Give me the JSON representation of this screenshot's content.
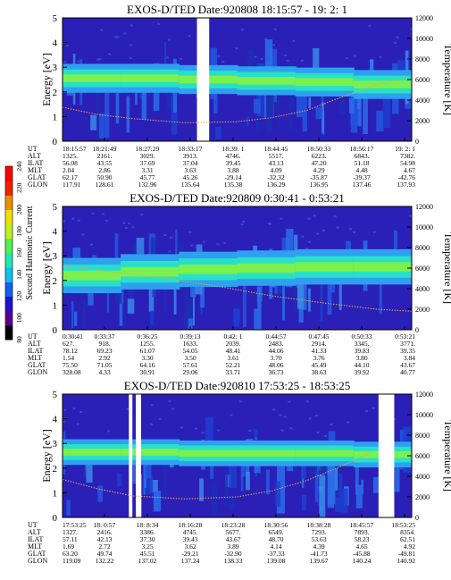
{
  "chart_data": {
    "type": "heatmap",
    "colorbar": {
      "label": "Second Harmonic Current",
      "ticks": [
        "80",
        "100",
        "120",
        "140",
        "160",
        "180",
        "200",
        "220",
        "240"
      ],
      "range": [
        80,
        240
      ]
    },
    "y_left": {
      "label": "Energy [eV]",
      "range": [
        0,
        5
      ],
      "ticks": [
        "0",
        "1",
        "2",
        "3",
        "4",
        "5"
      ]
    },
    "y_right": {
      "label": "Temperature [K]",
      "range": [
        0,
        12000
      ],
      "ticks": [
        "0",
        "2000",
        "4000",
        "6000",
        "8000",
        "10000",
        "12000"
      ]
    },
    "row_labels": [
      "UT",
      "ALT",
      "ILAT",
      "MLT",
      "GLAT",
      "GLON"
    ],
    "panels": [
      {
        "title_name": "EXOS-D/TED",
        "title_date": "Date:920808",
        "title_range": "18:15:57 - 19: 2: 1",
        "band": {
          "center_ev": [
            2.55,
            2.55,
            2.5,
            2.45,
            2.4,
            2.3
          ],
          "width_ev": 0.45
        },
        "gaps": [
          [
            0.385,
            0.42
          ]
        ],
        "temperature_k": [
          {
            "t": 0.0,
            "k": 3300
          },
          {
            "t": 0.1,
            "k": 2600
          },
          {
            "t": 0.2,
            "k": 2200
          },
          {
            "t": 0.35,
            "k": 1800
          },
          {
            "t": 0.5,
            "k": 1900
          },
          {
            "t": 0.6,
            "k": 2300
          },
          {
            "t": 0.7,
            "k": 3000
          },
          {
            "t": 0.8,
            "k": 4300
          },
          {
            "t": 0.9,
            "k": 5500
          },
          {
            "t": 1.0,
            "k": 6300
          }
        ],
        "table": [
          [
            "18:15:57",
            "18:21:49",
            "18:27:29",
            "18:33:17",
            "18:39: 1",
            "18:44:45",
            "18:50:33",
            "18:56:17",
            "19: 2: 1"
          ],
          [
            "1325.",
            "2161.",
            "3029.",
            "3913.",
            "4746.",
            "5517.",
            "6223.",
            "6843.",
            "7382."
          ],
          [
            "56.08",
            "43.55",
            "37.69",
            "37.04",
            "39.45",
            "43.13",
            "47.20",
            "51.18",
            "54.98"
          ],
          [
            "2.04",
            "2.86",
            "3.31",
            "3.63",
            "3.88",
            "4.09",
            "4.29",
            "4.48",
            "4.67"
          ],
          [
            "62.17",
            "50.90",
            "45.77",
            "45.26",
            "-29.14",
            "-32.32",
            "-35.87",
            "-39.37",
            "-42.76"
          ],
          [
            "117.91",
            "128.61",
            "132.96",
            "135.64",
            "135.38",
            "136.29",
            "136.95",
            "137.46",
            "137.93"
          ]
        ]
      },
      {
        "title_name": "EXOS-D/TED",
        "title_date": "Date:920809",
        "title_range": "0:30:41 - 0:53:21",
        "band": {
          "center_ev": [
            2.2,
            2.35,
            2.45,
            2.5,
            2.55,
            2.55
          ],
          "width_ev": 0.55
        },
        "gaps": [],
        "temperature_k": [
          {
            "t": 0.0,
            "k": 6200
          },
          {
            "t": 0.15,
            "k": 5600
          },
          {
            "t": 0.3,
            "k": 5000
          },
          {
            "t": 0.45,
            "k": 4200
          },
          {
            "t": 0.6,
            "k": 3300
          },
          {
            "t": 0.75,
            "k": 2600
          },
          {
            "t": 0.9,
            "k": 2000
          },
          {
            "t": 1.0,
            "k": 1800
          }
        ],
        "table": [
          [
            "0:30:41",
            "0:33:37",
            "0:36:25",
            "0:39:13",
            "0:42: 1",
            "0:44:57",
            "0:47:45",
            "0:50:33",
            "0:53:21"
          ],
          [
            "627.",
            "918.",
            "1255.",
            "1633.",
            "2039.",
            "2483.",
            "2914.",
            "3345.",
            "3771."
          ],
          [
            "78.12",
            "69.23",
            "61.07",
            "54.05",
            "48.41",
            "44.06",
            "41.33",
            "39.83",
            "39.35"
          ],
          [
            "1.54",
            "2.92",
            "3.30",
            "3.50",
            "3.61",
            "3.70",
            "3.76",
            "3.80",
            "3.84"
          ],
          [
            "75.50",
            "71.05",
            "64.16",
            "57.61",
            "52.21",
            "48.06",
            "45.49",
            "44.10",
            "43.67"
          ],
          [
            "328.08",
            "4.33",
            "30.91",
            "29.06",
            "33.71",
            "36.73",
            "38.63",
            "39.92",
            "40.77"
          ]
        ]
      },
      {
        "title_name": "EXOS-D/TED",
        "title_date": "Date:920810",
        "title_range": "17:53:25 - 18:53:25",
        "band": {
          "center_ev": [
            2.65,
            2.65,
            2.6,
            2.6,
            2.6,
            2.55
          ],
          "width_ev": 0.4
        },
        "gaps": [
          [
            0.19,
            0.2
          ],
          [
            0.21,
            0.225
          ],
          [
            0.905,
            0.95
          ]
        ],
        "temperature_k": [
          {
            "t": 0.0,
            "k": 3700
          },
          {
            "t": 0.1,
            "k": 2800
          },
          {
            "t": 0.2,
            "k": 2100
          },
          {
            "t": 0.35,
            "k": 1800
          },
          {
            "t": 0.5,
            "k": 2000
          },
          {
            "t": 0.6,
            "k": 2600
          },
          {
            "t": 0.7,
            "k": 3600
          },
          {
            "t": 0.8,
            "k": 5000
          },
          {
            "t": 0.88,
            "k": 6300
          }
        ],
        "table": [
          [
            "17:53:25",
            "18: 0:57",
            "18: 8:34",
            "18:16:28",
            "18:23:28",
            "18:30:56",
            "18:38:28",
            "18:45:57",
            "18:53:25"
          ],
          [
            "1327.",
            "2416.",
            "3386.",
            "4745.",
            "5677.",
            "6549.",
            "7293.",
            "7893.",
            "8354."
          ],
          [
            "57.11",
            "42.13",
            "37.30",
            "39.43",
            "43.67",
            "48.70",
            "53.63",
            "58.23",
            "62.51"
          ],
          [
            "1.69",
            "2.72",
            "3.25",
            "3.62",
            "3.89",
            "4.14",
            "4.39",
            "4.65",
            "4.92"
          ],
          [
            "63.20",
            "49.74",
            "45.51",
            "-29.21",
            "-32.90",
            "-37.33",
            "-41.73",
            "-45.88",
            "-49.81"
          ],
          [
            "119.09",
            "132.22",
            "137.02",
            "137.24",
            "138.33",
            "139.08",
            "139.67",
            "140.24",
            "140.92"
          ]
        ]
      }
    ]
  }
}
